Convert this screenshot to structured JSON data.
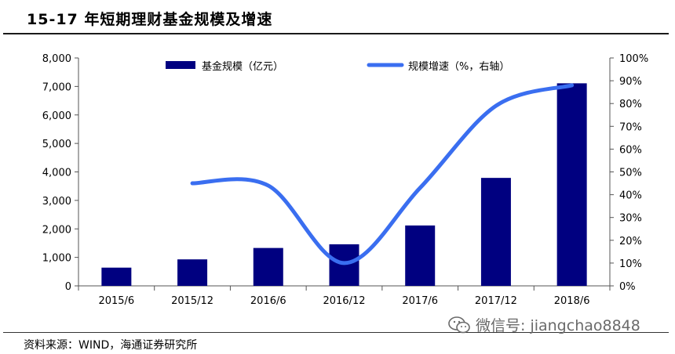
{
  "header": {
    "title": "15-17 年短期理财基金规模及增速"
  },
  "footer": {
    "source": "资料来源：WIND，海通证券研究所",
    "watermark": "微信号: jiangchao8848",
    "watermark_icon": "wechat-icon"
  },
  "colors": {
    "bar": "#000080",
    "line": "#3a6ef0",
    "axis": "#555555"
  },
  "chart_data": {
    "type": "bar",
    "title": "15-17 年短期理财基金规模及增速",
    "categories": [
      "2015/6",
      "2015/12",
      "2016/6",
      "2016/12",
      "2017/6",
      "2017/12",
      "2018/6"
    ],
    "series": [
      {
        "name": "基金规模（亿元）",
        "type": "bar",
        "axis": "left",
        "values": [
          640,
          930,
          1330,
          1460,
          2120,
          3790,
          7110
        ]
      },
      {
        "name": "规模增速（%，右轴）",
        "type": "line",
        "axis": "right",
        "values": [
          null,
          45,
          44,
          10,
          43,
          79,
          88
        ]
      }
    ],
    "y_left": {
      "min": 0,
      "max": 8000,
      "step": 1000,
      "ticks": [
        "0",
        "1,000",
        "2,000",
        "3,000",
        "4,000",
        "5,000",
        "6,000",
        "7,000",
        "8,000"
      ]
    },
    "y_right": {
      "min": 0,
      "max": 100,
      "step": 10,
      "ticks": [
        "0%",
        "10%",
        "20%",
        "30%",
        "40%",
        "50%",
        "60%",
        "70%",
        "80%",
        "90%",
        "100%"
      ]
    },
    "legend": [
      "基金规模（亿元）",
      "规模增速（%，右轴）"
    ],
    "legend_position": "top",
    "grid": false
  }
}
